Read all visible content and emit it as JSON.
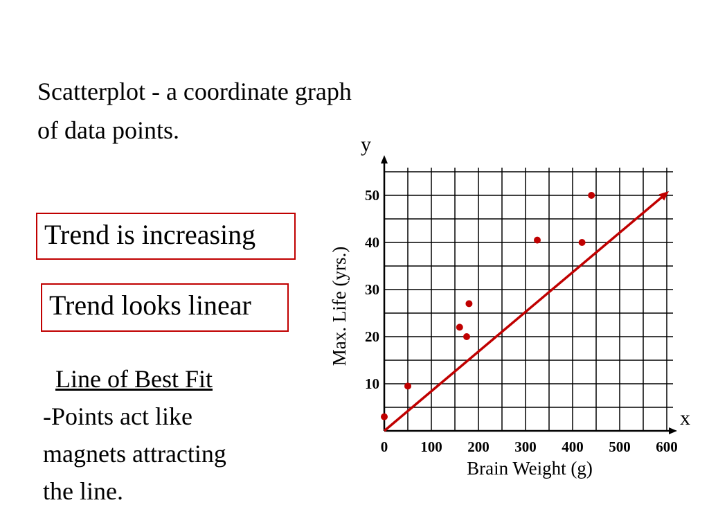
{
  "slide": {
    "intro": "Scatterplot - a coordinate graph of data points.",
    "box1": "Trend is increasing",
    "box2": "Trend looks linear",
    "best_fit_title": "Line of Best Fit",
    "best_fit_body": "-Points act like\nmagnets attracting\nthe line."
  },
  "colors": {
    "accent": "#c00000",
    "grid": "#000000"
  },
  "chart_data": {
    "type": "scatter",
    "title": "",
    "xlabel": "Brain Weight (g)",
    "ylabel": "Max. Life (yrs.)",
    "x_var": "x",
    "y_var": "y",
    "xlim": [
      0,
      600
    ],
    "ylim": [
      0,
      55
    ],
    "xticks": [
      0,
      100,
      200,
      300,
      400,
      500,
      600
    ],
    "yticks": [
      10,
      20,
      30,
      40,
      50
    ],
    "grid": true,
    "points": [
      {
        "x": 0,
        "y": 3
      },
      {
        "x": 50,
        "y": 9.5
      },
      {
        "x": 160,
        "y": 22
      },
      {
        "x": 175,
        "y": 20
      },
      {
        "x": 180,
        "y": 27
      },
      {
        "x": 325,
        "y": 40.5
      },
      {
        "x": 420,
        "y": 40
      },
      {
        "x": 440,
        "y": 50
      }
    ],
    "trend_line": {
      "x": [
        0,
        600
      ],
      "y": [
        0,
        50.5
      ]
    }
  }
}
